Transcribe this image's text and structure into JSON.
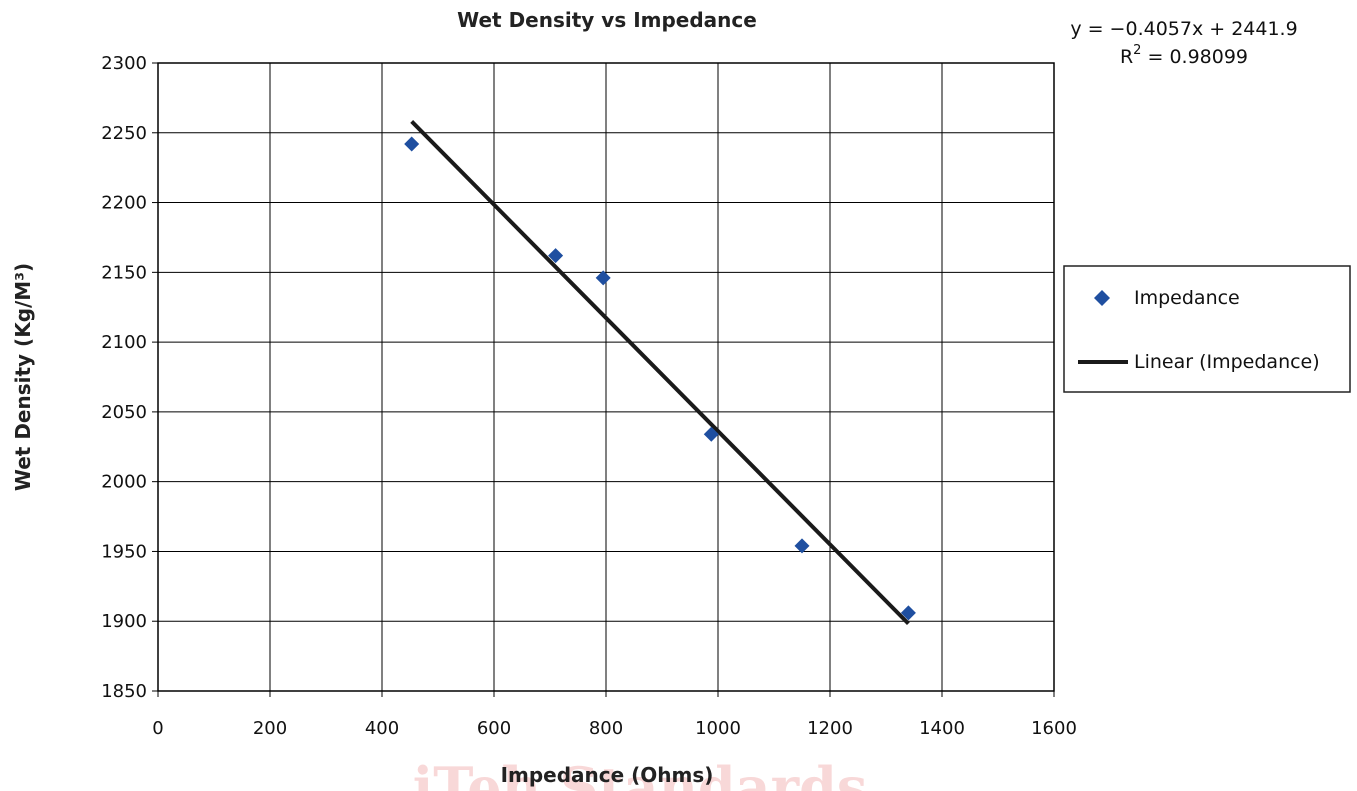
{
  "chart_data": {
    "type": "scatter",
    "title": "Wet Density vs Impedance",
    "xlabel": "Impedance (Ohms)",
    "ylabel": "Wet Density (Kg/M³)",
    "xlim": [
      0,
      1600
    ],
    "ylim": [
      1850,
      2300
    ],
    "x_ticks": [
      0,
      200,
      400,
      600,
      800,
      1000,
      1200,
      1400,
      1600
    ],
    "y_ticks": [
      1850,
      1900,
      1950,
      2000,
      2050,
      2100,
      2150,
      2200,
      2250,
      2300
    ],
    "grid": true,
    "legend_position": "right",
    "series": [
      {
        "name": "Impedance",
        "type": "scatter",
        "marker": "diamond",
        "color": "#1f4fa0",
        "points": [
          {
            "x": 453,
            "y": 2242
          },
          {
            "x": 710,
            "y": 2162
          },
          {
            "x": 795,
            "y": 2146
          },
          {
            "x": 988,
            "y": 2034
          },
          {
            "x": 1150,
            "y": 1954
          },
          {
            "x": 1340,
            "y": 1906
          }
        ]
      },
      {
        "name": "Linear (Impedance)",
        "type": "line",
        "color": "#1a1a1a",
        "slope": -0.4057,
        "intercept": 2441.9,
        "x_range": [
          453,
          1340
        ]
      }
    ],
    "annotations": {
      "equation": "y = −0.4057x + 2441.9",
      "r2_label": "R",
      "r2_exponent": "2",
      "r2_value": " = 0.98099"
    },
    "watermark": "iTeh Standards"
  }
}
